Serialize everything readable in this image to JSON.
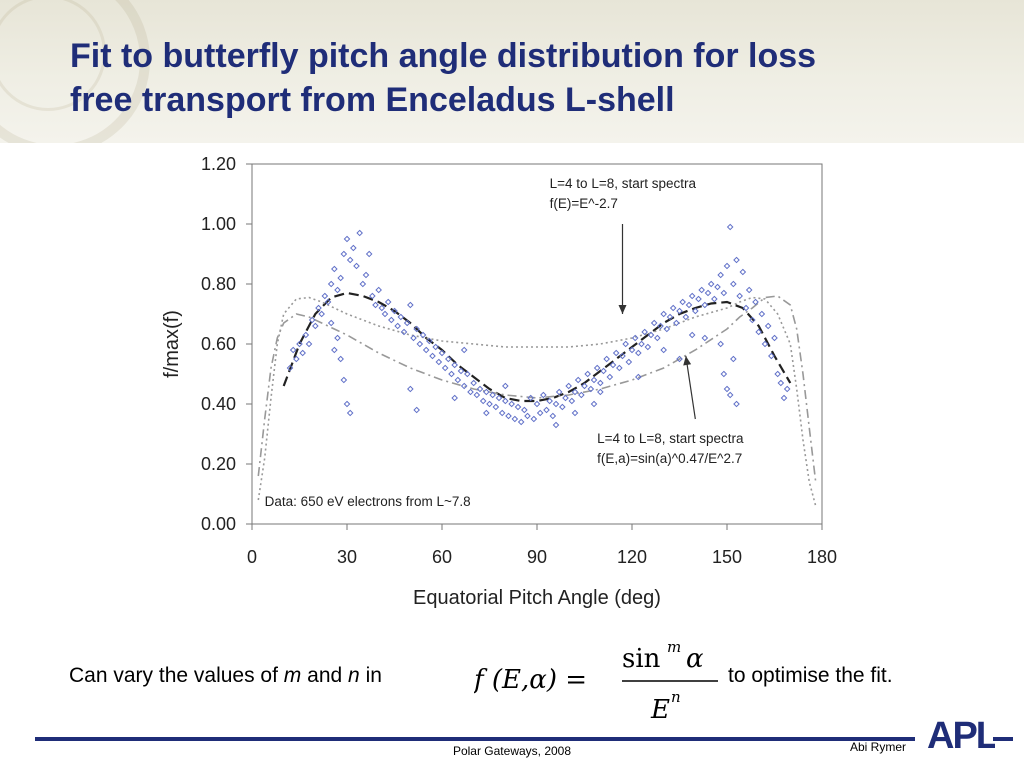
{
  "slide": {
    "title_line1": "Fit to butterfly pitch angle distribution for loss",
    "title_line2": "free transport from Enceladus L-shell",
    "caption_prefix": "Can vary the values of",
    "caption_m": "m",
    "caption_and": "and",
    "caption_n": "n",
    "caption_in": "in",
    "caption_suffix": "to optimise the fit.",
    "footer_center": "Polar Gateways, 2008",
    "footer_right": "Abi Rymer",
    "logo_text": "APL"
  },
  "formula": {
    "lhs": "f (E,α) =",
    "numerator": "sin",
    "numerator_exp": "m",
    "numerator_var": "α",
    "denominator": "E",
    "denominator_exp": "n"
  },
  "colors": {
    "title": "#1f2d78",
    "points": "#6070c8",
    "curves": "#808080",
    "rule": "#1f2d78"
  },
  "chart_data": {
    "type": "scatter",
    "xlabel": "Equatorial Pitch Angle (deg)",
    "ylabel": "f/max(f)",
    "xlim": [
      0,
      180
    ],
    "ylim": [
      0.0,
      1.2
    ],
    "xticks": [
      0,
      30,
      60,
      90,
      120,
      150,
      180
    ],
    "xtick_labels": [
      "0",
      "30",
      "60",
      "90",
      "120",
      "150",
      "180"
    ],
    "yticks": [
      0.0,
      0.2,
      0.4,
      0.6,
      0.8,
      1.0,
      1.2
    ],
    "ytick_labels": [
      "0.00",
      "0.20",
      "0.40",
      "0.60",
      "0.80",
      "1.00",
      "1.20"
    ],
    "grid": false,
    "annotations": [
      {
        "lines": [
          "L=4 to L=8, start spectra",
          "f(E)=E^-2.7"
        ],
        "x": 94,
        "y": 1.12,
        "arrow_from": [
          117,
          1.0
        ],
        "arrow_to": [
          117,
          0.7
        ]
      },
      {
        "lines": [
          "L=4 to L=8, start spectra",
          "f(E,a)=sin(a)^0.47/E^2.7"
        ],
        "x": 109,
        "y": 0.27,
        "arrow_from": [
          140,
          0.35
        ],
        "arrow_to": [
          137,
          0.56
        ]
      },
      {
        "lines": [
          "Data: 650 eV electrons from L~7.8"
        ],
        "x": 4,
        "y": 0.06
      }
    ],
    "series": [
      {
        "style": "dashed-fit",
        "x": [
          10,
          15,
          20,
          25,
          30,
          35,
          40,
          45,
          50,
          55,
          60,
          65,
          70,
          75,
          80,
          85,
          90,
          95,
          100,
          105,
          110,
          115,
          120,
          125,
          130,
          135,
          140,
          145,
          150,
          155,
          160,
          165,
          170
        ],
        "values": [
          0.46,
          0.6,
          0.7,
          0.755,
          0.77,
          0.76,
          0.74,
          0.71,
          0.67,
          0.62,
          0.58,
          0.53,
          0.49,
          0.45,
          0.42,
          0.41,
          0.41,
          0.42,
          0.44,
          0.47,
          0.51,
          0.55,
          0.59,
          0.63,
          0.67,
          0.7,
          0.72,
          0.735,
          0.74,
          0.72,
          0.66,
          0.56,
          0.47
        ]
      },
      {
        "style": "dotted-model",
        "x": [
          2,
          4,
          6,
          8,
          10,
          14,
          18,
          22,
          26,
          30,
          40,
          50,
          60,
          70,
          80,
          90,
          100,
          110,
          120,
          130,
          140,
          150,
          154,
          158,
          162,
          166,
          170,
          172,
          174,
          176,
          178
        ],
        "values": [
          0.08,
          0.22,
          0.42,
          0.6,
          0.7,
          0.75,
          0.755,
          0.74,
          0.72,
          0.7,
          0.66,
          0.63,
          0.61,
          0.6,
          0.59,
          0.59,
          0.59,
          0.6,
          0.62,
          0.65,
          0.69,
          0.72,
          0.74,
          0.755,
          0.75,
          0.7,
          0.6,
          0.45,
          0.28,
          0.14,
          0.06
        ]
      },
      {
        "style": "dashdot-model",
        "x": [
          2,
          4,
          6,
          8,
          10,
          14,
          18,
          22,
          26,
          30,
          40,
          50,
          60,
          70,
          80,
          90,
          100,
          110,
          120,
          130,
          140,
          150,
          154,
          158,
          162,
          166,
          170,
          172,
          174,
          176,
          178
        ],
        "values": [
          0.16,
          0.35,
          0.52,
          0.62,
          0.67,
          0.7,
          0.69,
          0.67,
          0.65,
          0.63,
          0.57,
          0.52,
          0.48,
          0.45,
          0.43,
          0.42,
          0.43,
          0.45,
          0.48,
          0.52,
          0.58,
          0.65,
          0.69,
          0.72,
          0.755,
          0.76,
          0.73,
          0.65,
          0.5,
          0.32,
          0.14
        ]
      }
    ],
    "scatter_points": [
      [
        12,
        0.52
      ],
      [
        13,
        0.58
      ],
      [
        14,
        0.55
      ],
      [
        15,
        0.6
      ],
      [
        16,
        0.57
      ],
      [
        17,
        0.63
      ],
      [
        18,
        0.6
      ],
      [
        19,
        0.68
      ],
      [
        20,
        0.66
      ],
      [
        21,
        0.72
      ],
      [
        22,
        0.7
      ],
      [
        23,
        0.76
      ],
      [
        24,
        0.74
      ],
      [
        25,
        0.8
      ],
      [
        26,
        0.85
      ],
      [
        27,
        0.78
      ],
      [
        28,
        0.82
      ],
      [
        29,
        0.9
      ],
      [
        30,
        0.95
      ],
      [
        31,
        0.88
      ],
      [
        32,
        0.92
      ],
      [
        33,
        0.86
      ],
      [
        34,
        0.97
      ],
      [
        35,
        0.8
      ],
      [
        36,
        0.83
      ],
      [
        37,
        0.9
      ],
      [
        38,
        0.76
      ],
      [
        39,
        0.73
      ],
      [
        40,
        0.78
      ],
      [
        25,
        0.67
      ],
      [
        27,
        0.62
      ],
      [
        28,
        0.55
      ],
      [
        29,
        0.48
      ],
      [
        30,
        0.4
      ],
      [
        31,
        0.37
      ],
      [
        26,
        0.58
      ],
      [
        41,
        0.72
      ],
      [
        42,
        0.7
      ],
      [
        43,
        0.74
      ],
      [
        44,
        0.68
      ],
      [
        45,
        0.71
      ],
      [
        46,
        0.66
      ],
      [
        47,
        0.69
      ],
      [
        48,
        0.64
      ],
      [
        49,
        0.67
      ],
      [
        50,
        0.73
      ],
      [
        51,
        0.62
      ],
      [
        52,
        0.65
      ],
      [
        53,
        0.6
      ],
      [
        54,
        0.63
      ],
      [
        55,
        0.58
      ],
      [
        56,
        0.61
      ],
      [
        57,
        0.56
      ],
      [
        58,
        0.59
      ],
      [
        59,
        0.54
      ],
      [
        60,
        0.57
      ],
      [
        61,
        0.52
      ],
      [
        62,
        0.55
      ],
      [
        63,
        0.5
      ],
      [
        64,
        0.53
      ],
      [
        65,
        0.48
      ],
      [
        66,
        0.51
      ],
      [
        67,
        0.46
      ],
      [
        68,
        0.5
      ],
      [
        69,
        0.44
      ],
      [
        70,
        0.47
      ],
      [
        71,
        0.43
      ],
      [
        72,
        0.45
      ],
      [
        73,
        0.41
      ],
      [
        74,
        0.44
      ],
      [
        75,
        0.4
      ],
      [
        76,
        0.43
      ],
      [
        77,
        0.39
      ],
      [
        78,
        0.42
      ],
      [
        79,
        0.37
      ],
      [
        80,
        0.41
      ],
      [
        81,
        0.36
      ],
      [
        82,
        0.4
      ],
      [
        83,
        0.35
      ],
      [
        84,
        0.39
      ],
      [
        85,
        0.34
      ],
      [
        86,
        0.38
      ],
      [
        87,
        0.36
      ],
      [
        88,
        0.42
      ],
      [
        89,
        0.35
      ],
      [
        90,
        0.4
      ],
      [
        91,
        0.37
      ],
      [
        92,
        0.43
      ],
      [
        93,
        0.38
      ],
      [
        94,
        0.41
      ],
      [
        95,
        0.36
      ],
      [
        96,
        0.4
      ],
      [
        97,
        0.44
      ],
      [
        98,
        0.39
      ],
      [
        99,
        0.42
      ],
      [
        100,
        0.46
      ],
      [
        101,
        0.41
      ],
      [
        102,
        0.44
      ],
      [
        103,
        0.48
      ],
      [
        104,
        0.43
      ],
      [
        105,
        0.46
      ],
      [
        106,
        0.5
      ],
      [
        107,
        0.45
      ],
      [
        108,
        0.48
      ],
      [
        109,
        0.52
      ],
      [
        110,
        0.47
      ],
      [
        111,
        0.51
      ],
      [
        112,
        0.55
      ],
      [
        113,
        0.49
      ],
      [
        114,
        0.53
      ],
      [
        115,
        0.57
      ],
      [
        116,
        0.52
      ],
      [
        117,
        0.56
      ],
      [
        118,
        0.6
      ],
      [
        119,
        0.54
      ],
      [
        120,
        0.58
      ],
      [
        121,
        0.62
      ],
      [
        122,
        0.57
      ],
      [
        123,
        0.6
      ],
      [
        124,
        0.64
      ],
      [
        125,
        0.59
      ],
      [
        126,
        0.63
      ],
      [
        127,
        0.67
      ],
      [
        128,
        0.62
      ],
      [
        129,
        0.66
      ],
      [
        130,
        0.7
      ],
      [
        131,
        0.65
      ],
      [
        132,
        0.69
      ],
      [
        133,
        0.72
      ],
      [
        134,
        0.67
      ],
      [
        135,
        0.71
      ],
      [
        136,
        0.74
      ],
      [
        137,
        0.69
      ],
      [
        138,
        0.73
      ],
      [
        139,
        0.76
      ],
      [
        140,
        0.71
      ],
      [
        141,
        0.75
      ],
      [
        142,
        0.78
      ],
      [
        143,
        0.73
      ],
      [
        144,
        0.77
      ],
      [
        145,
        0.8
      ],
      [
        146,
        0.75
      ],
      [
        147,
        0.79
      ],
      [
        148,
        0.83
      ],
      [
        149,
        0.77
      ],
      [
        150,
        0.86
      ],
      [
        151,
        0.99
      ],
      [
        152,
        0.8
      ],
      [
        153,
        0.88
      ],
      [
        154,
        0.76
      ],
      [
        155,
        0.84
      ],
      [
        156,
        0.72
      ],
      [
        157,
        0.78
      ],
      [
        158,
        0.68
      ],
      [
        159,
        0.74
      ],
      [
        160,
        0.64
      ],
      [
        161,
        0.7
      ],
      [
        162,
        0.6
      ],
      [
        163,
        0.66
      ],
      [
        164,
        0.56
      ],
      [
        165,
        0.62
      ],
      [
        166,
        0.5
      ],
      [
        167,
        0.47
      ],
      [
        168,
        0.42
      ],
      [
        169,
        0.45
      ],
      [
        148,
        0.6
      ],
      [
        149,
        0.5
      ],
      [
        150,
        0.45
      ],
      [
        151,
        0.43
      ],
      [
        152,
        0.55
      ],
      [
        153,
        0.4
      ],
      [
        50,
        0.45
      ],
      [
        52,
        0.38
      ],
      [
        64,
        0.42
      ],
      [
        67,
        0.58
      ],
      [
        74,
        0.37
      ],
      [
        80,
        0.46
      ],
      [
        96,
        0.33
      ],
      [
        102,
        0.37
      ],
      [
        108,
        0.4
      ],
      [
        110,
        0.44
      ],
      [
        122,
        0.49
      ],
      [
        130,
        0.58
      ],
      [
        135,
        0.55
      ],
      [
        139,
        0.63
      ],
      [
        143,
        0.62
      ]
    ]
  }
}
